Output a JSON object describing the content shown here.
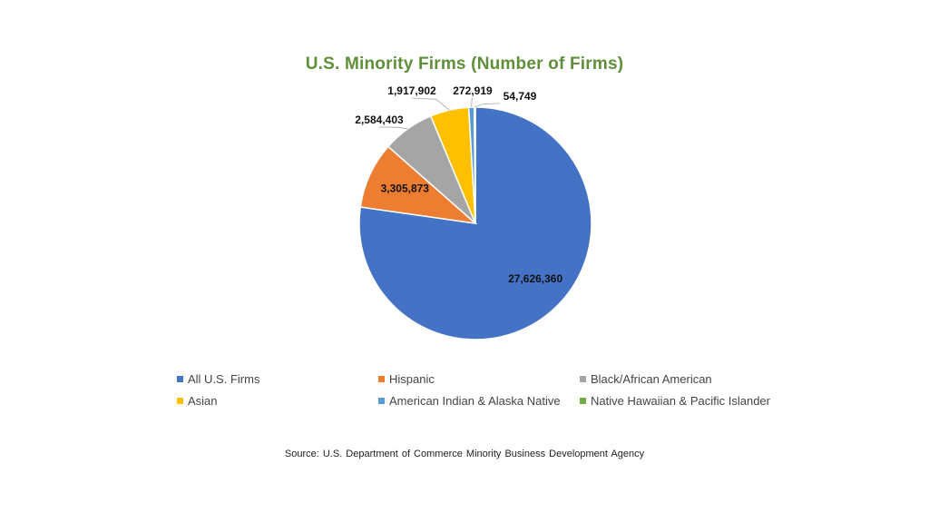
{
  "chart_data": {
    "type": "pie",
    "title": "U.S. Minority Firms (Number of Firms)",
    "categories": [
      "All U.S. Firms",
      "Hispanic",
      "Black/African American",
      "Asian",
      "American Indian & Alaska Native",
      "Native Hawaiian & Pacific Islander"
    ],
    "values": [
      27626360,
      3305873,
      2584403,
      1917902,
      272919,
      54749
    ],
    "data_labels": [
      "27,626,360",
      "3,305,873",
      "2,584,403",
      "1,917,902",
      "272,919",
      "54,749"
    ],
    "colors": [
      "#4472c4",
      "#ed7d31",
      "#a5a5a5",
      "#ffc000",
      "#5b9bd5",
      "#70ad47"
    ],
    "legend_position": "bottom"
  },
  "source": "Source: U.S. Department of Commerce Minority Business Development Agency"
}
